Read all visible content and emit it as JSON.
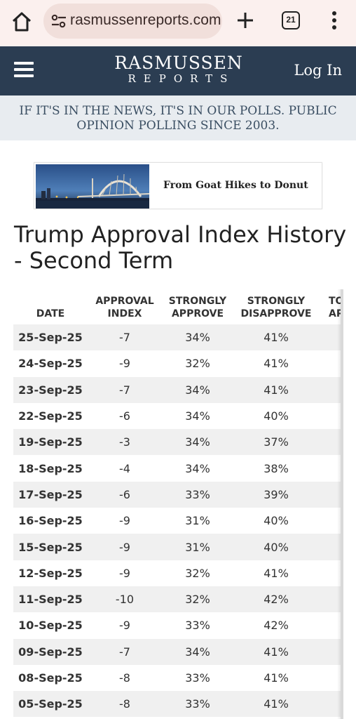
{
  "browser": {
    "url": "rasmussenreports.com",
    "tab_count": "21",
    "icons": {
      "home": "home-icon",
      "site": "tune-icon",
      "new_tab": "plus-icon",
      "tabs": "tabs-icon",
      "menu": "kebab-icon"
    }
  },
  "header": {
    "logo_line1": "RASMUSSEN",
    "logo_line2": "REPORTS",
    "login_label": "Log In",
    "bg_color": "#2b3d52"
  },
  "tagline": "IF IT'S IN THE NEWS, IT'S IN OUR POLLS. PUBLIC OPINION POLLING SINCE 2003.",
  "ad": {
    "text": "From Goat Hikes to Donut"
  },
  "title": "Trump Approval Index History - Second Term",
  "table": {
    "headers": {
      "date": "DATE",
      "approval_l1": "APPROVAL",
      "approval_l2": "INDEX",
      "sa_l1": "STRONGLY",
      "sa_l2": "APPROVE",
      "sd_l1": "STRONGLY",
      "sd_l2": "DISAPPROVE",
      "ta_l1": "TOTAL",
      "ta_l2": "APPROVE"
    },
    "rows": [
      {
        "date": "25-Sep-25",
        "index": "-7",
        "strongly_approve": "34%",
        "strongly_disapprove": "41%"
      },
      {
        "date": "24-Sep-25",
        "index": "-9",
        "strongly_approve": "32%",
        "strongly_disapprove": "41%"
      },
      {
        "date": "23-Sep-25",
        "index": "-7",
        "strongly_approve": "34%",
        "strongly_disapprove": "41%"
      },
      {
        "date": "22-Sep-25",
        "index": "-6",
        "strongly_approve": "34%",
        "strongly_disapprove": "40%"
      },
      {
        "date": "19-Sep-25",
        "index": "-3",
        "strongly_approve": "34%",
        "strongly_disapprove": "37%"
      },
      {
        "date": "18-Sep-25",
        "index": "-4",
        "strongly_approve": "34%",
        "strongly_disapprove": "38%"
      },
      {
        "date": "17-Sep-25",
        "index": "-6",
        "strongly_approve": "33%",
        "strongly_disapprove": "39%"
      },
      {
        "date": "16-Sep-25",
        "index": "-9",
        "strongly_approve": "31%",
        "strongly_disapprove": "40%"
      },
      {
        "date": "15-Sep-25",
        "index": "-9",
        "strongly_approve": "31%",
        "strongly_disapprove": "40%"
      },
      {
        "date": "12-Sep-25",
        "index": "-9",
        "strongly_approve": "32%",
        "strongly_disapprove": "41%"
      },
      {
        "date": "11-Sep-25",
        "index": "-10",
        "strongly_approve": "32%",
        "strongly_disapprove": "42%"
      },
      {
        "date": "10-Sep-25",
        "index": "-9",
        "strongly_approve": "33%",
        "strongly_disapprove": "42%"
      },
      {
        "date": "09-Sep-25",
        "index": "-7",
        "strongly_approve": "34%",
        "strongly_disapprove": "41%"
      },
      {
        "date": "08-Sep-25",
        "index": "-8",
        "strongly_approve": "33%",
        "strongly_disapprove": "41%"
      },
      {
        "date": "05-Sep-25",
        "index": "-8",
        "strongly_approve": "33%",
        "strongly_disapprove": "41%"
      }
    ]
  }
}
